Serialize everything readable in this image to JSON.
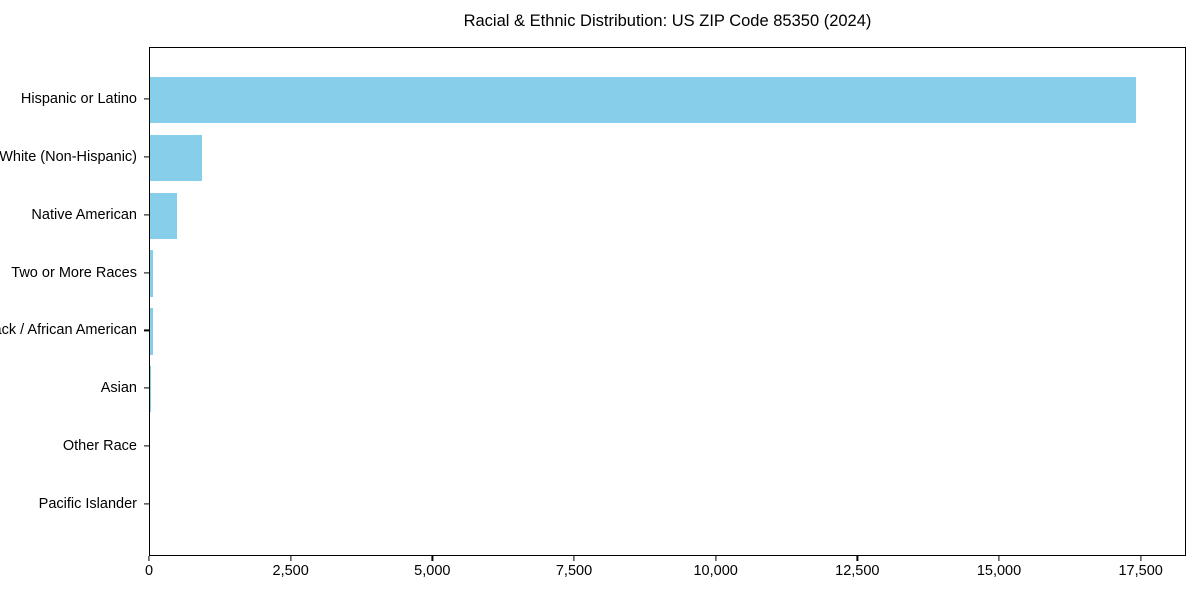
{
  "chart_data": {
    "type": "bar",
    "orientation": "horizontal",
    "title": "Racial & Ethnic Distribution: US ZIP Code 85350 (2024)",
    "categories": [
      "Hispanic or Latino",
      "White (Non-Hispanic)",
      "Native American",
      "Two or More Races",
      "Black / African American",
      "Asian",
      "Other Race",
      "Pacific Islander"
    ],
    "values": [
      17400,
      925,
      485,
      60,
      50,
      15,
      0,
      0
    ],
    "xlabel": "",
    "ylabel": "",
    "xlim": [
      0,
      18300
    ],
    "x_ticks": [
      0,
      2500,
      5000,
      7500,
      10000,
      12500,
      15000,
      17500
    ],
    "x_tick_labels": [
      "0",
      "2,500",
      "5,000",
      "7,500",
      "10,000",
      "12,500",
      "15,000",
      "17,500"
    ],
    "bar_color": "#87CEEB",
    "axis_color": "#000000",
    "grid": false,
    "legend": "none"
  }
}
